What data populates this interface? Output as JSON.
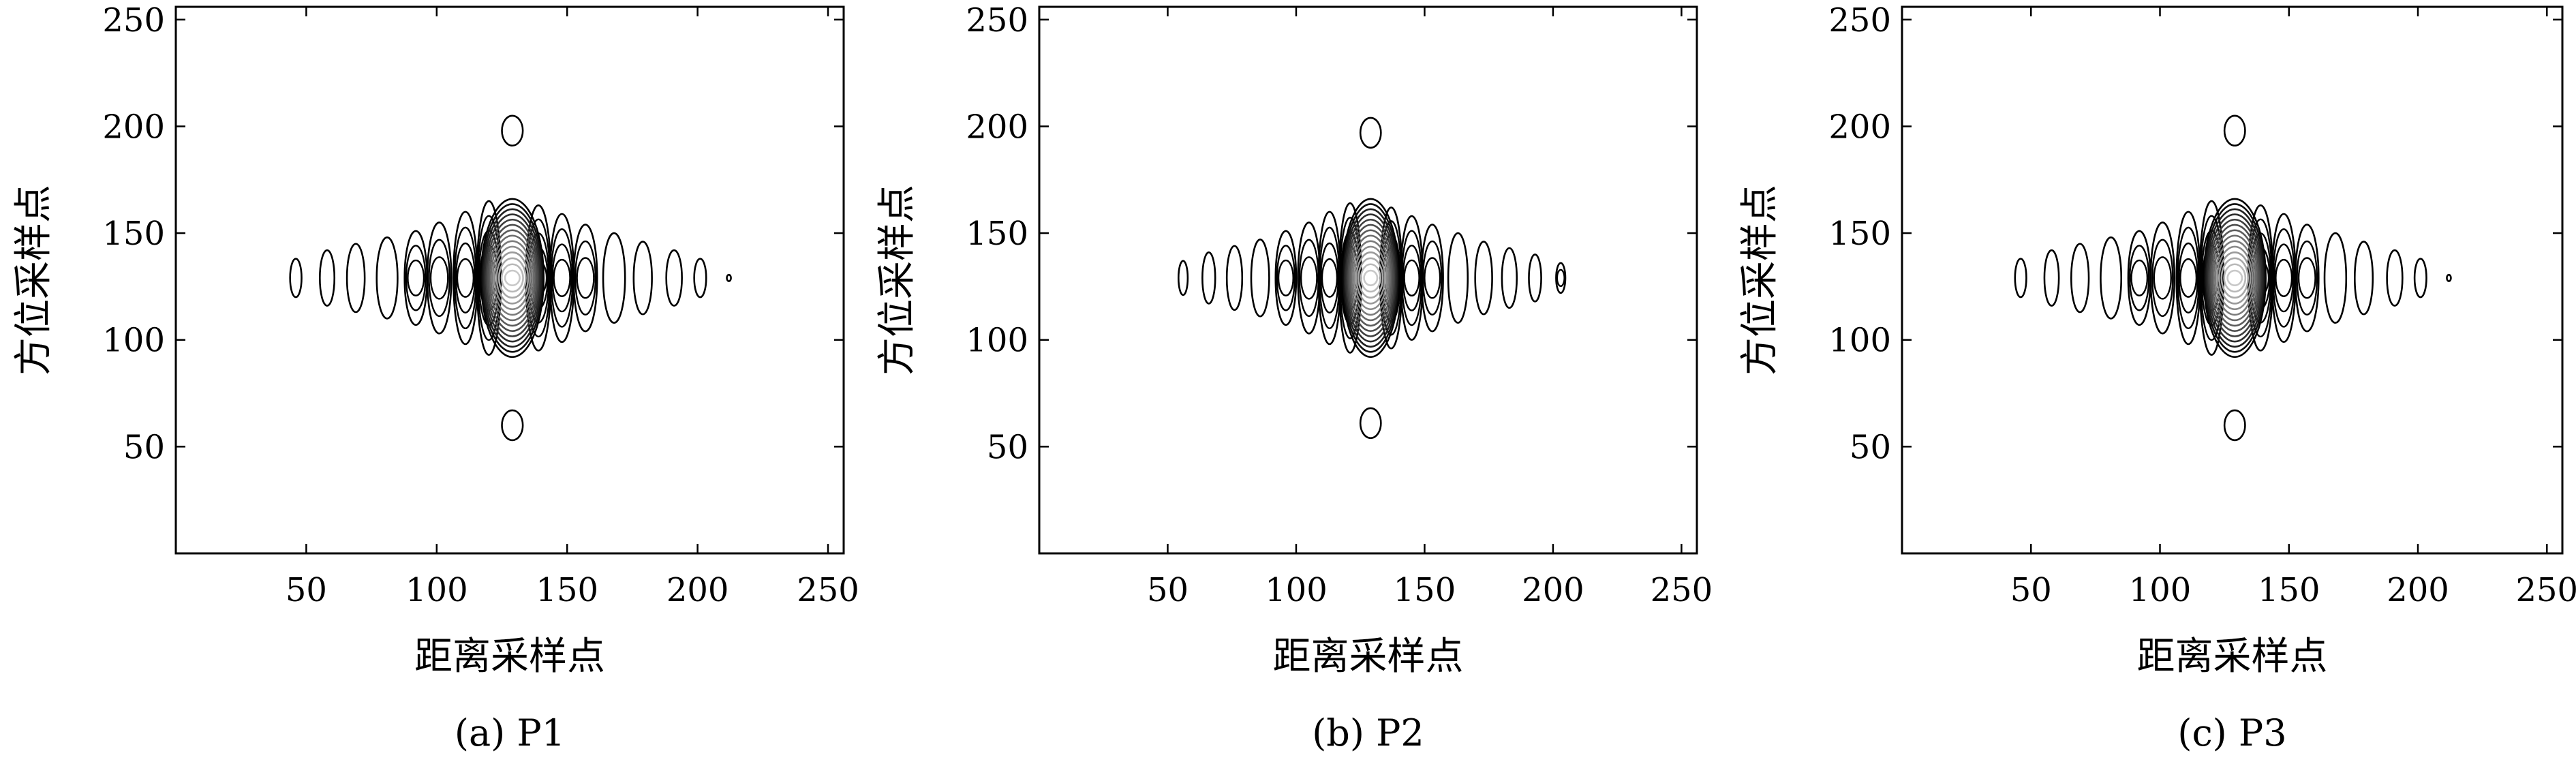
{
  "chart_data": [
    {
      "type": "contour",
      "caption": "(a) P1",
      "xlabel": "距离采样点",
      "ylabel": "方位采样点",
      "xlim": [
        0,
        256
      ],
      "ylim": [
        0,
        256
      ],
      "xticks": [
        50,
        100,
        150,
        200,
        250
      ],
      "yticks": [
        50,
        100,
        150,
        200,
        250
      ],
      "grid": false,
      "center": [
        129,
        129
      ],
      "main_lobe": {
        "half_width": 12,
        "half_height": 37,
        "levels": 14
      },
      "range_sidelobes": [
        {
          "x": 46,
          "hw": 2.2,
          "hh": 9
        },
        {
          "x": 58,
          "hw": 2.8,
          "hh": 13
        },
        {
          "x": 69,
          "hw": 3.4,
          "hh": 16
        },
        {
          "x": 81,
          "hw": 4,
          "hh": 19
        },
        {
          "x": 92,
          "hw": 4.3,
          "hh": 22,
          "inner": 2
        },
        {
          "x": 101,
          "hw": 4.6,
          "hh": 26,
          "inner": 2
        },
        {
          "x": 111,
          "hw": 4.6,
          "hh": 31,
          "inner": 3
        },
        {
          "x": 120,
          "hw": 4.6,
          "hh": 36,
          "inner": 4
        },
        {
          "x": 139,
          "hw": 4.8,
          "hh": 34,
          "inner": 4
        },
        {
          "x": 148,
          "hw": 4.6,
          "hh": 30,
          "inner": 3
        },
        {
          "x": 157,
          "hw": 4.5,
          "hh": 25,
          "inner": 2
        },
        {
          "x": 168,
          "hw": 4.2,
          "hh": 21
        },
        {
          "x": 179,
          "hw": 3.5,
          "hh": 17
        },
        {
          "x": 191,
          "hw": 3,
          "hh": 13
        },
        {
          "x": 201,
          "hw": 2.3,
          "hh": 9
        },
        {
          "x": 212,
          "hw": 0.8,
          "hh": 1.5
        }
      ],
      "azimuth_sidelobes": [
        {
          "x": 129,
          "y": 198,
          "hw": 4,
          "hh": 7
        },
        {
          "x": 129,
          "y": 60,
          "hw": 4,
          "hh": 7
        }
      ]
    },
    {
      "type": "contour",
      "caption": "(b) P2",
      "xlabel": "距离采样点",
      "ylabel": "方位采样点",
      "xlim": [
        0,
        256
      ],
      "ylim": [
        0,
        256
      ],
      "xticks": [
        50,
        100,
        150,
        200,
        250
      ],
      "yticks": [
        50,
        100,
        150,
        200,
        250
      ],
      "grid": false,
      "center": [
        129,
        129
      ],
      "main_lobe": {
        "half_width": 11,
        "half_height": 37,
        "levels": 14
      },
      "range_sidelobes": [
        {
          "x": 56,
          "hw": 1.8,
          "hh": 8
        },
        {
          "x": 66,
          "hw": 2.5,
          "hh": 12
        },
        {
          "x": 76,
          "hw": 3,
          "hh": 15
        },
        {
          "x": 86,
          "hw": 3.5,
          "hh": 18
        },
        {
          "x": 96,
          "hw": 4,
          "hh": 22,
          "inner": 2
        },
        {
          "x": 105,
          "hw": 4.3,
          "hh": 26,
          "inner": 2
        },
        {
          "x": 113,
          "hw": 4.3,
          "hh": 31,
          "inner": 3
        },
        {
          "x": 121,
          "hw": 4.3,
          "hh": 35,
          "inner": 4
        },
        {
          "x": 137,
          "hw": 4.3,
          "hh": 33,
          "inner": 4
        },
        {
          "x": 145,
          "hw": 4.3,
          "hh": 29,
          "inner": 3
        },
        {
          "x": 153,
          "hw": 4.2,
          "hh": 25,
          "inner": 2
        },
        {
          "x": 163,
          "hw": 3.8,
          "hh": 21
        },
        {
          "x": 173,
          "hw": 3.3,
          "hh": 17
        },
        {
          "x": 183,
          "hw": 2.9,
          "hh": 14
        },
        {
          "x": 193,
          "hw": 2.4,
          "hh": 11
        },
        {
          "x": 203,
          "hw": 1.8,
          "hh": 7,
          "inner": 1
        }
      ],
      "azimuth_sidelobes": [
        {
          "x": 129,
          "y": 197,
          "hw": 4,
          "hh": 7
        },
        {
          "x": 129,
          "y": 61,
          "hw": 4,
          "hh": 7
        }
      ]
    },
    {
      "type": "contour",
      "caption": "(c) P3",
      "xlabel": "距离采样点",
      "ylabel": "方位采样点",
      "xlim": [
        0,
        256
      ],
      "ylim": [
        0,
        256
      ],
      "xticks": [
        50,
        100,
        150,
        200,
        250
      ],
      "yticks": [
        50,
        100,
        150,
        200,
        250
      ],
      "grid": false,
      "center": [
        129,
        129
      ],
      "main_lobe": {
        "half_width": 12,
        "half_height": 37,
        "levels": 14
      },
      "range_sidelobes": [
        {
          "x": 46,
          "hw": 2.2,
          "hh": 9
        },
        {
          "x": 58,
          "hw": 2.8,
          "hh": 13
        },
        {
          "x": 69,
          "hw": 3.4,
          "hh": 16
        },
        {
          "x": 81,
          "hw": 4,
          "hh": 19
        },
        {
          "x": 92,
          "hw": 4.3,
          "hh": 22,
          "inner": 2
        },
        {
          "x": 101,
          "hw": 4.6,
          "hh": 26,
          "inner": 2
        },
        {
          "x": 111,
          "hw": 4.6,
          "hh": 31,
          "inner": 3
        },
        {
          "x": 120,
          "hw": 4.6,
          "hh": 36,
          "inner": 4
        },
        {
          "x": 139,
          "hw": 4.8,
          "hh": 34,
          "inner": 4
        },
        {
          "x": 148,
          "hw": 4.6,
          "hh": 30,
          "inner": 3
        },
        {
          "x": 157,
          "hw": 4.5,
          "hh": 25,
          "inner": 2
        },
        {
          "x": 168,
          "hw": 4.2,
          "hh": 21
        },
        {
          "x": 179,
          "hw": 3.5,
          "hh": 17
        },
        {
          "x": 191,
          "hw": 3,
          "hh": 13
        },
        {
          "x": 201,
          "hw": 2.3,
          "hh": 9
        },
        {
          "x": 212,
          "hw": 0.8,
          "hh": 1.5
        }
      ],
      "azimuth_sidelobes": [
        {
          "x": 129,
          "y": 198,
          "hw": 4,
          "hh": 7
        },
        {
          "x": 129,
          "y": 60,
          "hw": 4,
          "hh": 7
        }
      ]
    }
  ]
}
